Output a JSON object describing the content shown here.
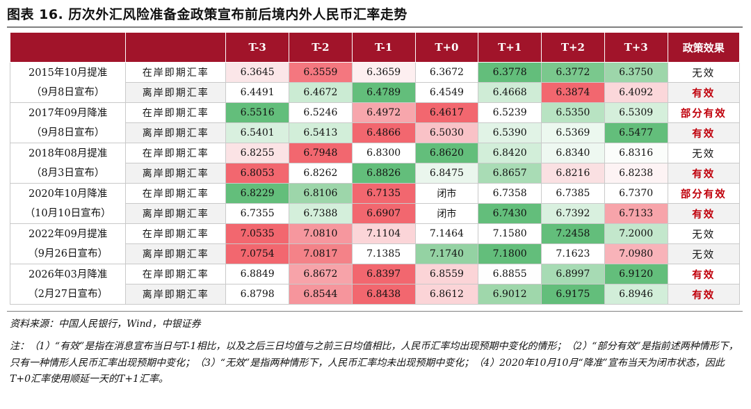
{
  "title": "图表 16. 历次外汇风险准备金政策宣布前后境内外人民币汇率走势",
  "table": {
    "headers": [
      "",
      "",
      "T-3",
      "T-2",
      "T-1",
      "T+0",
      "T+1",
      "T+2",
      "T+3",
      "政策效果"
    ],
    "rows": [
      {
        "policy": "2015年10月提准",
        "rate": "在岸即期汇率",
        "vals": [
          "6.3645",
          "6.3559",
          "6.3659",
          "6.3672",
          "6.3778",
          "6.3772",
          "6.3750"
        ],
        "bgs": [
          "#fbe6e8",
          "#f4777f",
          "#fdeff0",
          "#ffffff",
          "#63be7b",
          "#7ac88d",
          "#9dd6aa"
        ],
        "effect": "无效",
        "effect_red": false
      },
      {
        "policy": "（9月8日宣布）",
        "rate": "离岸即期汇率",
        "vals": [
          "6.4491",
          "6.4672",
          "6.4789",
          "6.4549",
          "6.4668",
          "6.3874",
          "6.4092"
        ],
        "bgs": [
          "#ffffff",
          "#cbebd3",
          "#63be7b",
          "#ffffff",
          "#cfecd6",
          "#f2676f",
          "#fbd7da"
        ],
        "effect": "有效",
        "effect_red": true
      },
      {
        "policy": "2017年09月降准",
        "rate": "在岸即期汇率",
        "vals": [
          "6.5516",
          "6.5246",
          "6.4972",
          "6.4617",
          "6.5239",
          "6.5350",
          "6.5309"
        ],
        "bgs": [
          "#63be7b",
          "#ffffff",
          "#f7a6ac",
          "#f2676f",
          "#ffffff",
          "#b8e3c2",
          "#d5efdb"
        ],
        "effect": "部分有效",
        "effect_red": true
      },
      {
        "policy": "（9月8日宣布）",
        "rate": "离岸即期汇率",
        "vals": [
          "6.5401",
          "6.5413",
          "6.4866",
          "6.5030",
          "6.5390",
          "6.5369",
          "6.5477"
        ],
        "bgs": [
          "#d9f0df",
          "#d2eed9",
          "#f2676f",
          "#f9c2c7",
          "#e1f3e6",
          "#ecf8ef",
          "#63be7b"
        ],
        "effect": "有效",
        "effect_red": true
      },
      {
        "policy": "2018年08月提准",
        "rate": "在岸即期汇率",
        "vals": [
          "6.8255",
          "6.7948",
          "6.8300",
          "6.8620",
          "6.8420",
          "6.8340",
          "6.8316"
        ],
        "bgs": [
          "#fbe3e5",
          "#f2676f",
          "#ffffff",
          "#63be7b",
          "#d2eed9",
          "#eef8f1",
          "#fbfdfb"
        ],
        "effect": "无效",
        "effect_red": false
      },
      {
        "policy": "（8月3日宣布）",
        "rate": "离岸即期汇率",
        "vals": [
          "6.8053",
          "6.8262",
          "6.8826",
          "6.8475",
          "6.8657",
          "6.8216",
          "6.8238"
        ],
        "bgs": [
          "#f2676f",
          "#ffffff",
          "#63be7b",
          "#eaf6ed",
          "#a9dcb5",
          "#fae0e2",
          "#fdf3f4"
        ],
        "effect": "有效",
        "effect_red": true
      },
      {
        "policy": "2020年10月降准",
        "rate": "在岸即期汇率",
        "vals": [
          "6.8229",
          "6.8106",
          "6.7135",
          "闭市",
          "6.7358",
          "6.7385",
          "6.7370"
        ],
        "bgs": [
          "#63be7b",
          "#9dd6aa",
          "#f2676f",
          "#ffffff",
          "#ffffff",
          "#ffffff",
          "#ffffff"
        ],
        "effect": "部分有效",
        "effect_red": true
      },
      {
        "policy": "（10月10日宣布）",
        "rate": "离岸即期汇率",
        "vals": [
          "6.7355",
          "6.7388",
          "6.6907",
          "闭市",
          "6.7430",
          "6.7392",
          "6.7133"
        ],
        "bgs": [
          "#ffffff",
          "#d4efdb",
          "#f2676f",
          "#ffffff",
          "#63be7b",
          "#d9f0df",
          "#f7a4aa"
        ],
        "effect": "有效",
        "effect_red": true
      },
      {
        "policy": "2022年09月提准",
        "rate": "在岸即期汇率",
        "vals": [
          "7.0535",
          "7.0810",
          "7.1104",
          "7.1464",
          "7.1580",
          "7.2458",
          "7.2000"
        ],
        "bgs": [
          "#f2676f",
          "#f6979e",
          "#fbd5d8",
          "#ffffff",
          "#ffffff",
          "#63be7b",
          "#c3e7cc"
        ],
        "effect": "无效",
        "effect_red": false
      },
      {
        "policy": "（9月26日宣布）",
        "rate": "离岸即期汇率",
        "vals": [
          "7.0754",
          "7.0817",
          "7.1385",
          "7.1740",
          "7.1800",
          "7.1623",
          "7.0980"
        ],
        "bgs": [
          "#f2676f",
          "#f48288",
          "#ffffff",
          "#94d2a3",
          "#63be7b",
          "#ffffff",
          "#f8b3b9"
        ],
        "effect": "无效",
        "effect_red": false
      },
      {
        "policy": "2026年03月降准",
        "rate": "在岸即期汇率",
        "vals": [
          "6.8849",
          "6.8672",
          "6.8397",
          "6.8559",
          "6.8855",
          "6.8997",
          "6.9120"
        ],
        "bgs": [
          "#ffffff",
          "#f7a3a9",
          "#f2676f",
          "#fbd4d7",
          "#fefefe",
          "#a7dbb4",
          "#63be7b"
        ],
        "effect": "有效",
        "effect_red": true
      },
      {
        "policy": "（2月27日宣布）",
        "rate": "离岸即期汇率",
        "vals": [
          "6.8798",
          "6.8544",
          "6.8438",
          "6.8612",
          "6.9012",
          "6.9175",
          "6.8946"
        ],
        "bgs": [
          "#ffffff",
          "#f6959c",
          "#f2676f",
          "#fbd4d7",
          "#9fd7ab",
          "#63be7b",
          "#d2eed9"
        ],
        "effect": "有效",
        "effect_red": true
      }
    ]
  },
  "source": "资料来源：中国人民银行，Wind，中银证券",
  "note": "注：（1）“有效”是指在消息宣布当日与T-1相比，以及之后三日均值与之前三日均值相比，人民币汇率均出现预期中变化的情形；（2）“部分有效”是指前述两种情形下，只有一种情形人民币汇率出现预期中变化；（3）“无效”是指两种情形下，人民币汇率均未出现预期中变化；（4）2020年10月10月“降准”宣布当天为闭市状态，因此T+0汇率使用顺延一天的T+1汇率。"
}
